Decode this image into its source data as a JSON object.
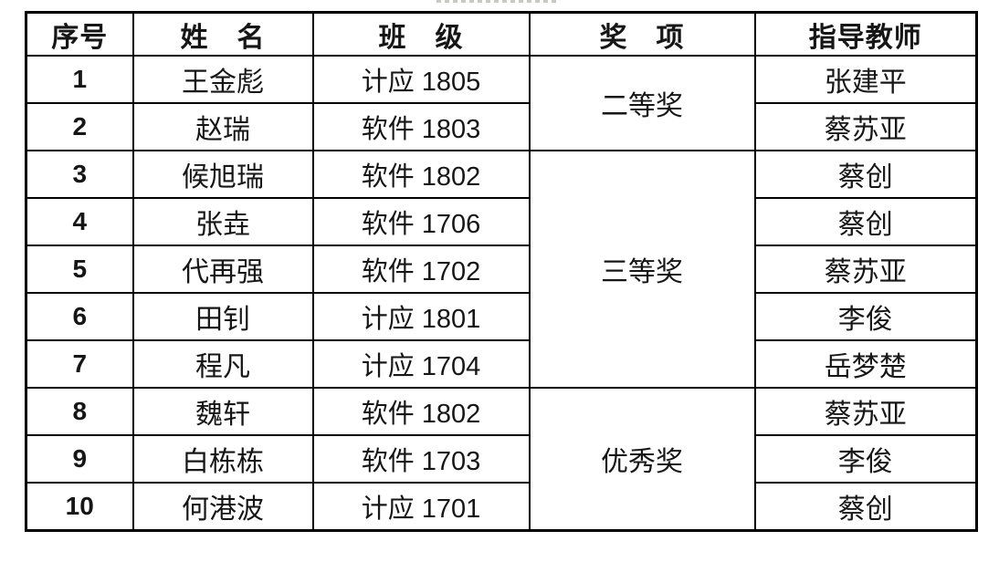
{
  "table": {
    "headers": {
      "no": "序号",
      "name": "姓　名",
      "class": "班　级",
      "award": "奖　项",
      "teacher": "指导教师"
    },
    "rows": [
      {
        "no": "1",
        "name": "王金彪",
        "class": "计应 1805",
        "teacher": "张建平"
      },
      {
        "no": "2",
        "name": "赵瑞",
        "class": "软件 1803",
        "teacher": "蔡苏亚"
      },
      {
        "no": "3",
        "name": "候旭瑞",
        "class": "软件 1802",
        "teacher": "蔡创"
      },
      {
        "no": "4",
        "name": "张垚",
        "class": "软件 1706",
        "teacher": "蔡创"
      },
      {
        "no": "5",
        "name": "代再强",
        "class": "软件 1702",
        "teacher": "蔡苏亚"
      },
      {
        "no": "6",
        "name": "田钊",
        "class": "计应 1801",
        "teacher": "李俊"
      },
      {
        "no": "7",
        "name": "程凡",
        "class": "计应 1704",
        "teacher": "岳梦楚"
      },
      {
        "no": "8",
        "name": "魏轩",
        "class": "软件 1802",
        "teacher": "蔡苏亚"
      },
      {
        "no": "9",
        "name": "白栋栋",
        "class": "软件 1703",
        "teacher": "李俊"
      },
      {
        "no": "10",
        "name": "何港波",
        "class": "计应 1701",
        "teacher": "蔡创"
      }
    ],
    "award_groups": [
      {
        "label": "二等奖",
        "span": 2
      },
      {
        "label": "三等奖",
        "span": 5
      },
      {
        "label": "优秀奖",
        "span": 3
      }
    ]
  }
}
